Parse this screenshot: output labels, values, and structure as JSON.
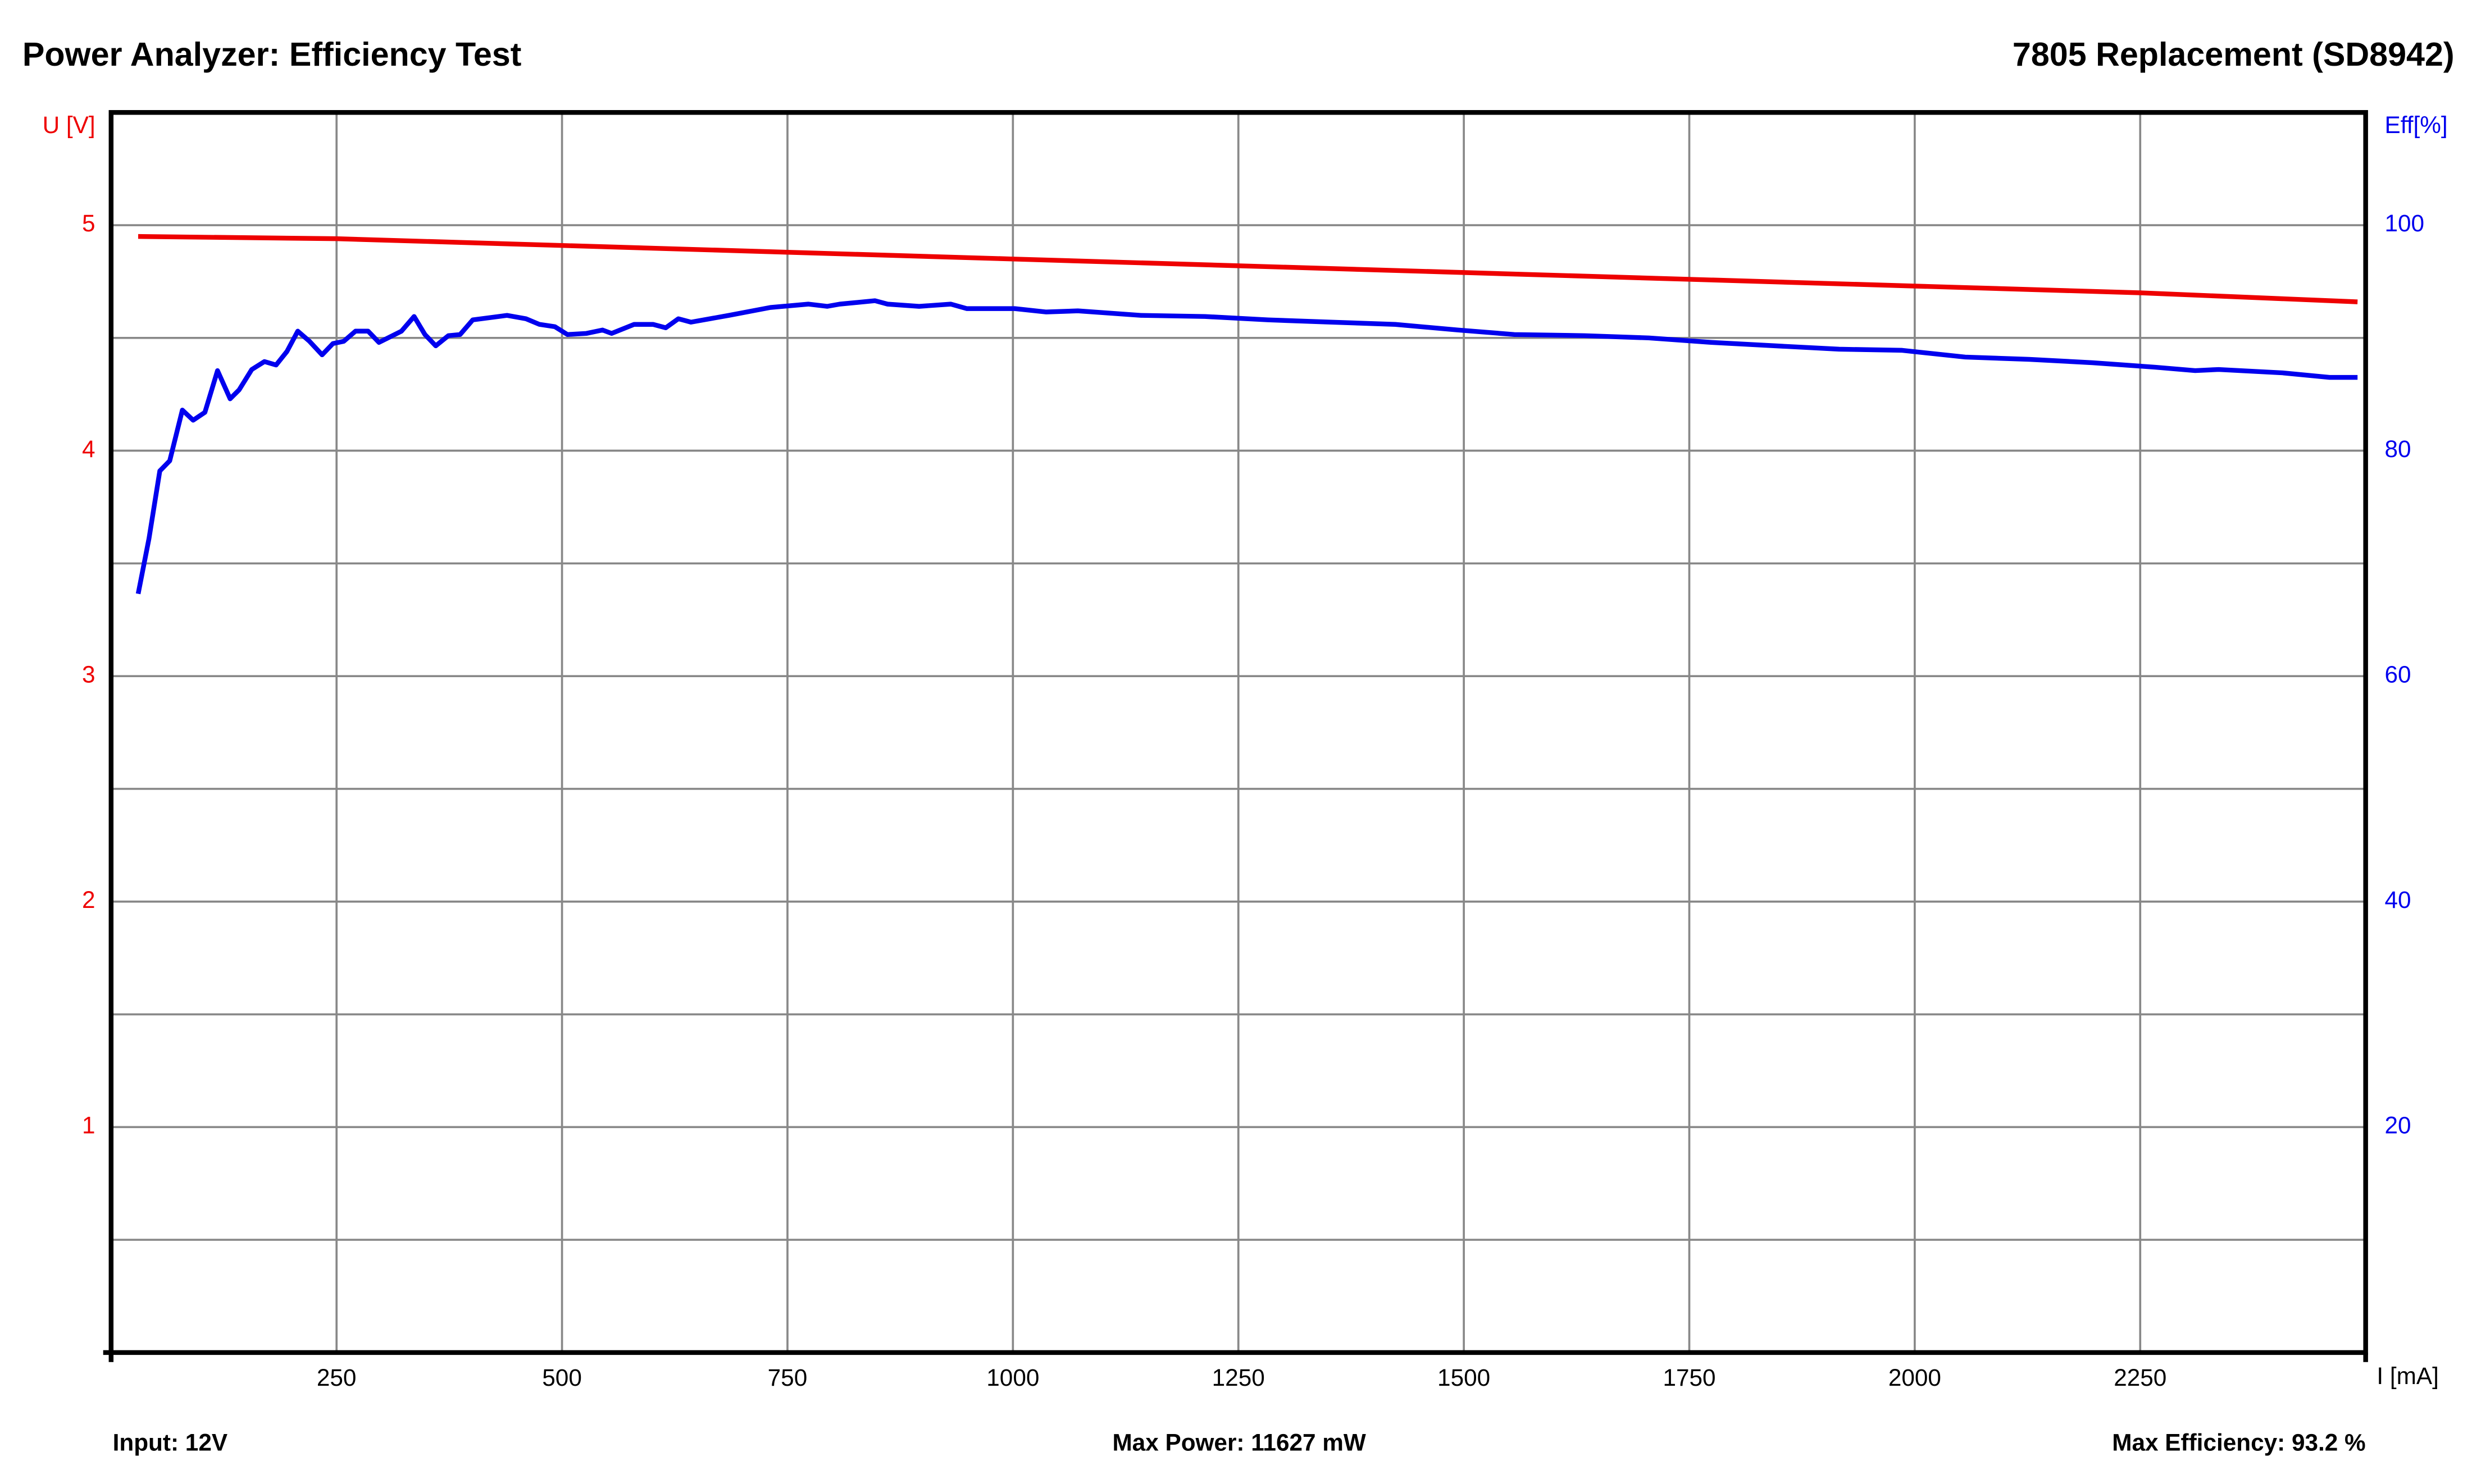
{
  "chart_data": {
    "type": "line",
    "title": "Power Analyzer: Efficiency Test",
    "subtitle": "7805 Replacement (SD8942)",
    "y_label": "U [V]",
    "y2_label": "Eff[%]",
    "x_label": "I [mA]",
    "footer": [
      "Input: 12V",
      "Max Power: 11627 mW",
      "Max Efficiency: 93.2 %"
    ],
    "xlim": [
      0,
      2500
    ],
    "xticks": [
      250,
      500,
      750,
      1000,
      1250,
      1500,
      1750,
      2000,
      2250
    ],
    "ylim": [
      0,
      5.5
    ],
    "yticks": [
      1,
      2,
      3,
      4,
      5
    ],
    "ygrid_minor": [
      0.5,
      1.5,
      2.5,
      3.5,
      4.5
    ],
    "y2lim": [
      0,
      110
    ],
    "y2ticks": [
      20,
      40,
      60,
      80,
      100
    ],
    "grid": true,
    "series": [
      {
        "name": "U [V]",
        "color": "#ee0000",
        "x": [
          30,
          250,
          500,
          750,
          1000,
          1250,
          1500,
          1750,
          2000,
          2250,
          2491
        ],
        "values": [
          4.95,
          4.94,
          4.91,
          4.88,
          4.85,
          4.82,
          4.79,
          4.76,
          4.73,
          4.7,
          4.66
        ]
      },
      {
        "name": "Eff[%]",
        "color": "#0000ee",
        "axis": "y2",
        "x": [
          30,
          42,
          54,
          65,
          79,
          91,
          104,
          118,
          132,
          142,
          156,
          170,
          183,
          195,
          207,
          220,
          234,
          246,
          258,
          271,
          285,
          297,
          322,
          336,
          348,
          360,
          374,
          387,
          401,
          439,
          460,
          475,
          492,
          506,
          527,
          545,
          555,
          580,
          601,
          615,
          629,
          643,
          685,
          731,
          773,
          794,
          808,
          847,
          861,
          896,
          931,
          949,
          1002,
          1037,
          1072,
          1142,
          1213,
          1283,
          1353,
          1424,
          1494,
          1556,
          1634,
          1705,
          1775,
          1845,
          1916,
          1986,
          2056,
          2127,
          2197,
          2267,
          2311,
          2337,
          2408,
          2460,
          2491
        ],
        "values": [
          67.3,
          72.2,
          78.2,
          79.1,
          83.6,
          82.7,
          83.4,
          87.1,
          84.6,
          85.4,
          87.2,
          87.9,
          87.6,
          88.8,
          90.6,
          89.7,
          88.5,
          89.5,
          89.7,
          90.6,
          90.6,
          89.6,
          90.6,
          91.9,
          90.3,
          89.3,
          90.2,
          90.3,
          91.6,
          92.0,
          91.7,
          91.2,
          91.0,
          90.3,
          90.4,
          90.7,
          90.4,
          91.2,
          91.2,
          90.9,
          91.7,
          91.4,
          92.0,
          92.7,
          93.0,
          92.8,
          93.0,
          93.3,
          93.0,
          92.8,
          93.0,
          92.6,
          92.6,
          92.3,
          92.4,
          92.0,
          91.9,
          91.6,
          91.4,
          91.2,
          90.7,
          90.3,
          90.2,
          90.0,
          89.6,
          89.3,
          89.0,
          88.9,
          88.3,
          88.1,
          87.8,
          87.4,
          87.1,
          87.2,
          86.9,
          86.5,
          86.5
        ]
      }
    ]
  }
}
